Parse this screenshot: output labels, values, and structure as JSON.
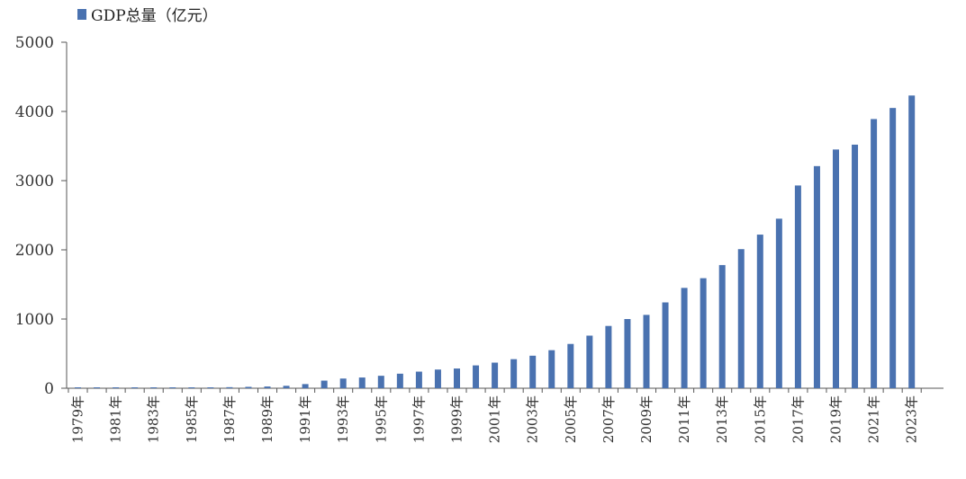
{
  "chart_data": {
    "type": "bar",
    "title": "",
    "xlabel": "",
    "ylabel": "",
    "ylim": [
      0,
      5000
    ],
    "yticks": [
      0,
      1000,
      2000,
      3000,
      4000,
      5000
    ],
    "grid": false,
    "legend_position": "top-left",
    "bar_color": "#4a72b0",
    "categories": [
      "1979年",
      "1980年",
      "1981年",
      "1982年",
      "1983年",
      "1984年",
      "1985年",
      "1986年",
      "1987年",
      "1988年",
      "1989年",
      "1990年",
      "1991年",
      "1992年",
      "1993年",
      "1994年",
      "1995年",
      "1996年",
      "1997年",
      "1998年",
      "1999年",
      "2000年",
      "2001年",
      "2002年",
      "2003年",
      "2004年",
      "2005年",
      "2006年",
      "2007年",
      "2008年",
      "2009年",
      "2010年",
      "2011年",
      "2012年",
      "2013年",
      "2014年",
      "2015年",
      "2016年",
      "2017年",
      "2018年",
      "2019年",
      "2020年",
      "2021年",
      "2022年",
      "2023年"
    ],
    "tick_labels": [
      "1979年",
      "1981年",
      "1983年",
      "1985年",
      "1987年",
      "1989年",
      "1991年",
      "1993年",
      "1995年",
      "1997年",
      "1999年",
      "2001年",
      "2003年",
      "2005年",
      "2007年",
      "2009年",
      "2011年",
      "2013年",
      "2015年",
      "2017年",
      "2019年",
      "2021年",
      "2023年"
    ],
    "series": [
      {
        "name": "GDP总量（亿元）",
        "values": [
          2,
          3,
          4,
          5,
          6,
          8,
          10,
          12,
          15,
          20,
          25,
          35,
          60,
          110,
          140,
          155,
          180,
          210,
          240,
          270,
          285,
          330,
          370,
          420,
          470,
          550,
          640,
          760,
          900,
          1000,
          1060,
          1240,
          1450,
          1590,
          1780,
          2010,
          2220,
          2450,
          2930,
          3210,
          3450,
          3520,
          3890,
          4050,
          4230
        ]
      }
    ]
  }
}
